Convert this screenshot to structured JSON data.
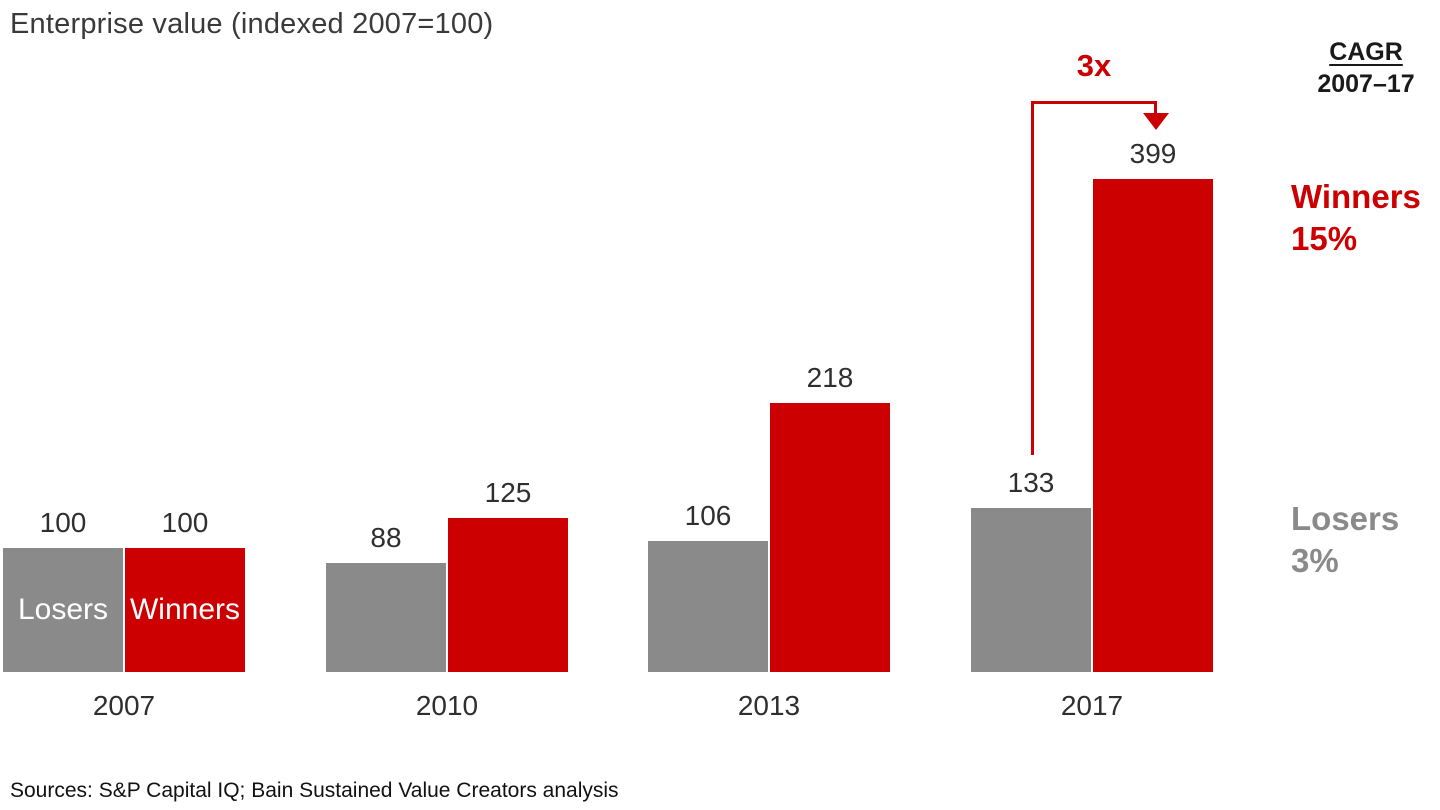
{
  "title": "Enterprise value (indexed 2007=100)",
  "cagr_header": {
    "label": "CAGR",
    "period": "2007–17"
  },
  "annotations": {
    "multiplier": "3x",
    "winners_label": "Winners",
    "winners_cagr": "15%",
    "losers_label": "Losers",
    "losers_cagr": "3%"
  },
  "footer": {
    "sources": "Sources: S&P Capital IQ; Bain Sustained Value Creators analysis"
  },
  "chart_data": {
    "type": "bar",
    "title": "Enterprise value (indexed 2007=100)",
    "categories": [
      "2007",
      "2010",
      "2013",
      "2017"
    ],
    "series": [
      {
        "name": "Losers",
        "color": "#8a8a8a",
        "values": [
          100,
          88,
          106,
          133
        ]
      },
      {
        "name": "Winners",
        "color": "#cc0000",
        "values": [
          100,
          125,
          218,
          399
        ]
      }
    ],
    "bar_value_labels": true,
    "inner_labels_group": "2007",
    "ylim": [
      0,
      430
    ],
    "grid": false,
    "legend_position": "inside-first-bars",
    "annotation_note": "3x arrow from Losers 2017 (133) to Winners 2017 (399); Winners CAGR 15%; Losers CAGR 3%"
  }
}
